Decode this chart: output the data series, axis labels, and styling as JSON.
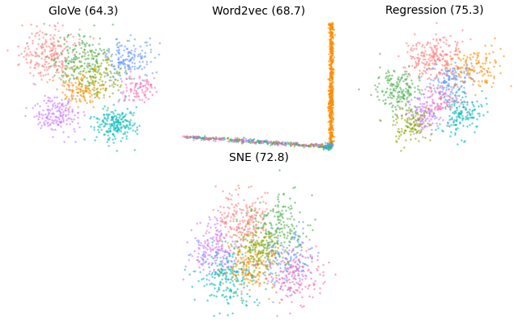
{
  "titles": [
    "GloVe (64.3)",
    "Word2vec (68.7)",
    "Regression (75.3)",
    "SNE (72.8)"
  ],
  "n_clusters": 8,
  "colors": [
    "#FF8080",
    "#4CAF50",
    "#6699FF",
    "#FF8C00",
    "#CC77FF",
    "#00BBBB",
    "#88AA00",
    "#FF69B4"
  ],
  "background_color": "#ffffff",
  "title_fontsize": 10,
  "seed": 42,
  "point_size": 3,
  "alpha": 0.65
}
